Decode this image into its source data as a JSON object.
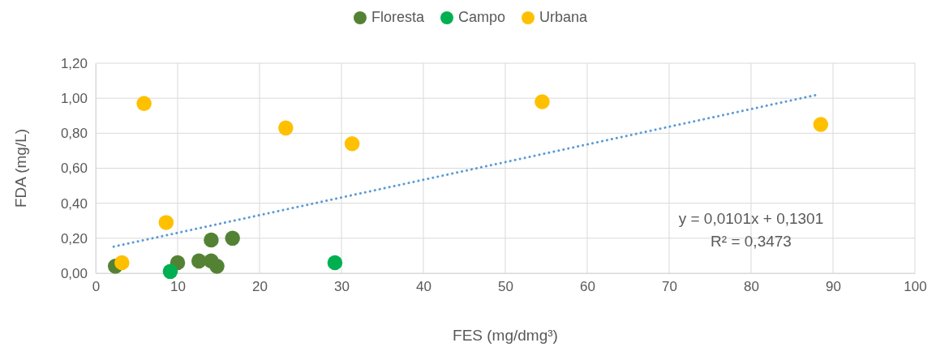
{
  "chart_data": {
    "type": "scatter",
    "xlabel": "FES (mg/dmg³)",
    "ylabel": "FDA (mg/L)",
    "xlim": [
      0,
      100
    ],
    "xticks": [
      0,
      10,
      20,
      30,
      40,
      50,
      60,
      70,
      80,
      90,
      100
    ],
    "ylim": [
      0,
      1.2
    ],
    "yticks": [
      {
        "value": 0,
        "label": "0,00"
      },
      {
        "value": 0.2,
        "label": "0,20"
      },
      {
        "value": 0.4,
        "label": "0,40"
      },
      {
        "value": 0.6,
        "label": "0,60"
      },
      {
        "value": 0.8,
        "label": "0,80"
      },
      {
        "value": 1,
        "label": "1,00"
      },
      {
        "value": 1.2,
        "label": "1,20"
      }
    ],
    "grid": true,
    "legend": "top",
    "marker": "circle",
    "series": [
      {
        "name": "Floresta",
        "color": "#548235",
        "x": [
          2.4,
          10,
          12.6,
          14.1,
          14.1,
          14.8,
          16.7
        ],
        "values": [
          0.04,
          0.06,
          0.07,
          0.19,
          0.07,
          0.04,
          0.2
        ]
      },
      {
        "name": "Campo",
        "color": "#00b050",
        "x": [
          9.1,
          29.2
        ],
        "values": [
          0.01,
          0.06
        ]
      },
      {
        "name": "Urbana",
        "color": "#ffc000",
        "x": [
          3.2,
          5.9,
          8.6,
          23.2,
          31.3,
          54.5,
          88.5
        ],
        "values": [
          0.06,
          0.97,
          0.29,
          0.83,
          0.74,
          0.98,
          0.85
        ]
      },
      {
        "type": "line",
        "color": "#5b9bd5",
        "line_style": "dotted",
        "marker": "none",
        "x": [
          2.2,
          88
        ],
        "values": [
          0.152,
          1.019
        ]
      }
    ],
    "annotations": [
      "y = 0,0101x + 0,1301",
      "R² = 0,3473"
    ]
  }
}
